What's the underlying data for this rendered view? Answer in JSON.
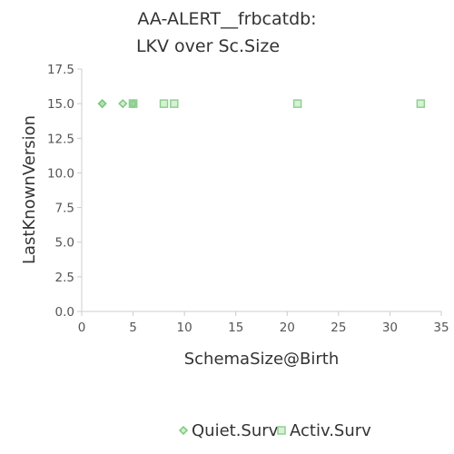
{
  "chart_data": {
    "type": "scatter",
    "title_lines": [
      "AA-ALERT__frbcatdb:",
      "LKV over Sc.Size"
    ],
    "xlabel": "SchemaSize@Birth",
    "ylabel": "LastKnownVersion",
    "xlim": [
      0,
      35
    ],
    "ylim": [
      0,
      17.5
    ],
    "x_ticks": [
      0,
      5,
      10,
      15,
      20,
      25,
      30,
      35
    ],
    "y_ticks": [
      0.0,
      2.5,
      5.0,
      7.5,
      10.0,
      12.5,
      15.0,
      17.5
    ],
    "grid": false,
    "legend_position": "bottom",
    "series": [
      {
        "name": "Quiet.Surv",
        "marker": "diamond",
        "color": "#7bc87b",
        "points": [
          {
            "x": 2,
            "y": 15
          },
          {
            "x": 2,
            "y": 15
          },
          {
            "x": 4,
            "y": 15
          },
          {
            "x": 5,
            "y": 15
          },
          {
            "x": 5,
            "y": 15
          }
        ]
      },
      {
        "name": "Activ.Surv",
        "marker": "square",
        "color": "#8fd08f",
        "points": [
          {
            "x": 5,
            "y": 15
          },
          {
            "x": 5,
            "y": 15
          },
          {
            "x": 8,
            "y": 15
          },
          {
            "x": 9,
            "y": 15
          },
          {
            "x": 21,
            "y": 15
          },
          {
            "x": 33,
            "y": 15
          }
        ]
      }
    ]
  }
}
